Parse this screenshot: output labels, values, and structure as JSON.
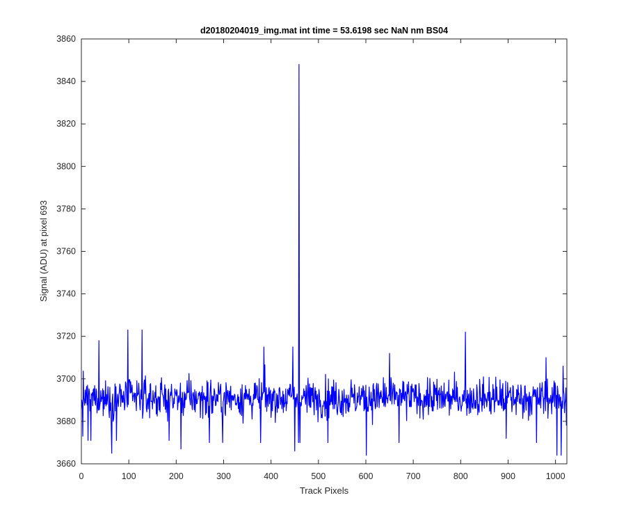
{
  "chart_data": {
    "type": "line",
    "title": "d20180204019_img.mat int time = 53.6198 sec  NaN nm BS04",
    "xlabel": "Track Pixels",
    "ylabel": "Signal (ADU) at pixel 693",
    "xlim": [
      0,
      1024
    ],
    "ylim": [
      3660,
      3860
    ],
    "xticks": [
      0,
      100,
      200,
      300,
      400,
      500,
      600,
      700,
      800,
      900,
      1000
    ],
    "yticks": [
      3660,
      3680,
      3700,
      3720,
      3740,
      3760,
      3780,
      3800,
      3820,
      3840,
      3860
    ],
    "grid": false,
    "legend": "none",
    "series": [
      {
        "color": "#0000ff",
        "noise": {
          "n_points": 1024,
          "mean": 3691,
          "min": 3664,
          "max": 3723
        },
        "features": [
          {
            "x": 0,
            "y": 3686
          },
          {
            "x": 3,
            "y": 3673
          },
          {
            "x": 14,
            "y": 3671
          },
          {
            "x": 20,
            "y": 3671
          },
          {
            "x": 37,
            "y": 3718
          },
          {
            "x": 64,
            "y": 3665
          },
          {
            "x": 74,
            "y": 3671
          },
          {
            "x": 98,
            "y": 3723
          },
          {
            "x": 128,
            "y": 3723
          },
          {
            "x": 185,
            "y": 3671
          },
          {
            "x": 210,
            "y": 3667
          },
          {
            "x": 270,
            "y": 3670
          },
          {
            "x": 298,
            "y": 3670
          },
          {
            "x": 378,
            "y": 3670
          },
          {
            "x": 385,
            "y": 3715
          },
          {
            "x": 446,
            "y": 3715
          },
          {
            "x": 450,
            "y": 3666
          },
          {
            "x": 458,
            "y": 3670
          },
          {
            "x": 459,
            "y": 3848
          },
          {
            "x": 460,
            "y": 3685
          },
          {
            "x": 461,
            "y": 3670
          },
          {
            "x": 520,
            "y": 3670
          },
          {
            "x": 601,
            "y": 3664
          },
          {
            "x": 650,
            "y": 3712
          },
          {
            "x": 670,
            "y": 3670
          },
          {
            "x": 810,
            "y": 3722
          },
          {
            "x": 896,
            "y": 3672
          },
          {
            "x": 960,
            "y": 3670
          },
          {
            "x": 980,
            "y": 3710
          },
          {
            "x": 1003,
            "y": 3664
          },
          {
            "x": 1012,
            "y": 3664
          },
          {
            "x": 1016,
            "y": 3706
          },
          {
            "x": 1023,
            "y": 3678
          }
        ]
      }
    ]
  }
}
